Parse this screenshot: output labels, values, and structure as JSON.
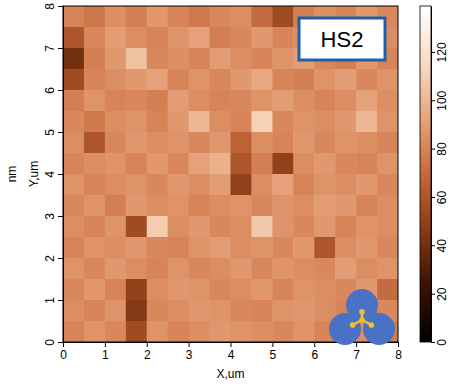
{
  "chart_data": {
    "type": "heatmap",
    "annotation": "HS2",
    "x_label": "X,um",
    "y_label": "Y,um",
    "colorbar_label": "nm",
    "xlim": [
      0,
      8
    ],
    "xticks": [
      0,
      1,
      2,
      3,
      4,
      5,
      6,
      7,
      8
    ],
    "ylim": [
      0,
      8
    ],
    "yticks": [
      0,
      1,
      2,
      3,
      4,
      5,
      6,
      7,
      8
    ],
    "zlim": [
      0,
      139
    ],
    "zticks": [
      0,
      20,
      40,
      60,
      80,
      100,
      120
    ],
    "z": [
      [
        80,
        75,
        85,
        78,
        88,
        80,
        76,
        82,
        84,
        70,
        55,
        78,
        85,
        80,
        88,
        82
      ],
      [
        60,
        82,
        90,
        84,
        80,
        86,
        92,
        78,
        82,
        88,
        80,
        84,
        78,
        86,
        80,
        84
      ],
      [
        40,
        78,
        88,
        105,
        82,
        85,
        80,
        90,
        84,
        80,
        86,
        90,
        82,
        78,
        88,
        80
      ],
      [
        55,
        80,
        84,
        88,
        92,
        80,
        86,
        82,
        88,
        94,
        80,
        78,
        86,
        90,
        82,
        86
      ],
      [
        78,
        86,
        80,
        82,
        78,
        90,
        84,
        80,
        82,
        86,
        90,
        84,
        80,
        84,
        92,
        84
      ],
      [
        82,
        76,
        84,
        86,
        80,
        88,
        100,
        84,
        80,
        112,
        82,
        86,
        84,
        88,
        100,
        86
      ],
      [
        84,
        60,
        82,
        88,
        84,
        86,
        82,
        88,
        66,
        84,
        80,
        88,
        82,
        86,
        84,
        80
      ],
      [
        80,
        84,
        86,
        80,
        88,
        82,
        92,
        98,
        60,
        78,
        50,
        84,
        88,
        82,
        80,
        86
      ],
      [
        86,
        80,
        84,
        86,
        82,
        88,
        84,
        90,
        50,
        84,
        92,
        80,
        86,
        84,
        88,
        82
      ],
      [
        82,
        86,
        78,
        88,
        84,
        86,
        80,
        84,
        86,
        82,
        86,
        84,
        90,
        88,
        80,
        84
      ],
      [
        84,
        80,
        86,
        55,
        110,
        84,
        88,
        82,
        84,
        108,
        86,
        82,
        88,
        80,
        86,
        84
      ],
      [
        80,
        86,
        84,
        88,
        82,
        80,
        86,
        90,
        84,
        86,
        82,
        88,
        60,
        84,
        88,
        82
      ],
      [
        86,
        82,
        88,
        84,
        80,
        86,
        82,
        84,
        88,
        82,
        86,
        84,
        82,
        90,
        84,
        86
      ],
      [
        82,
        88,
        80,
        50,
        84,
        88,
        86,
        82,
        84,
        88,
        80,
        86,
        84,
        82,
        88,
        70
      ],
      [
        84,
        80,
        86,
        45,
        82,
        84,
        88,
        86,
        82,
        80,
        86,
        88,
        84,
        80,
        62,
        82
      ],
      [
        80,
        86,
        82,
        55,
        86,
        80,
        84,
        88,
        86,
        84,
        82,
        86,
        80,
        88,
        84,
        78
      ]
    ]
  }
}
